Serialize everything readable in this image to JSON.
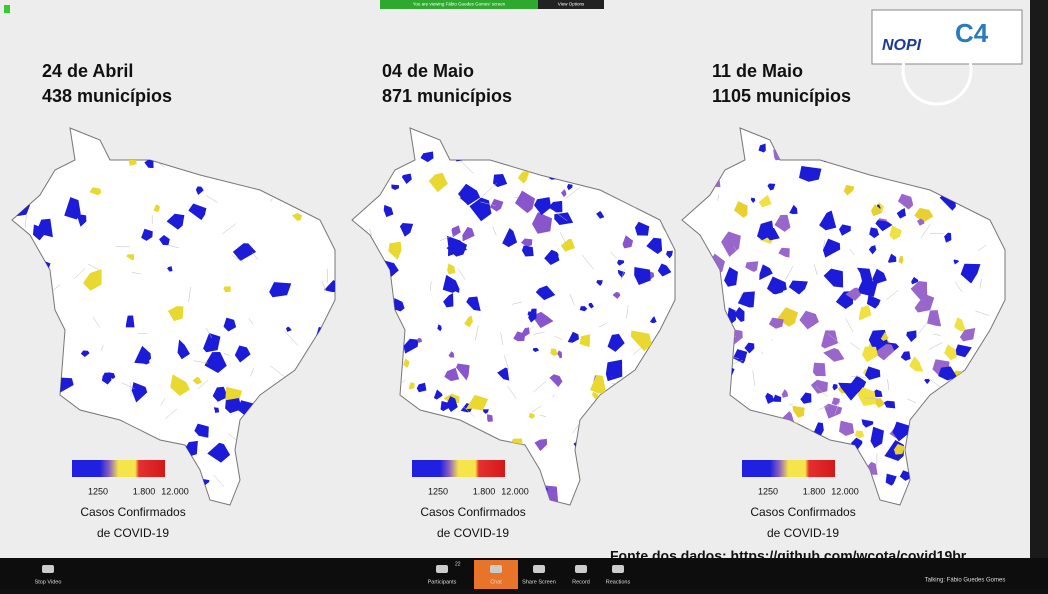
{
  "zoom_banner": {
    "viewing": "You are viewing Fábio Guedes Gomes' screen",
    "view_options": "View Options"
  },
  "logo": {
    "left": "NOPI",
    "right": "C4"
  },
  "slide": {
    "panels": [
      {
        "date": "24 de Abril",
        "count": "438 municípios",
        "legend": {
          "labels": [
            "12",
            "50",
            "1.800",
            "12.000"
          ],
          "title": [
            "Casos Confirmados",
            "de COVID-19"
          ]
        }
      },
      {
        "date": "04 de Maio",
        "count": "871 municípios",
        "legend": {
          "labels": [
            "12",
            "50",
            "1.800",
            "12.000"
          ],
          "title": [
            "Casos Confirmados",
            "de COVID-19"
          ]
        }
      },
      {
        "date": "11 de Maio",
        "count": "1105 municípios",
        "legend": {
          "labels": [
            "12",
            "50",
            "1.800",
            "12.000"
          ],
          "title": [
            "Casos Confirmados",
            "de COVID-19"
          ]
        }
      }
    ],
    "source": "Fonte dos dados: https://github.com/wcota/covid19br"
  },
  "toolbar": {
    "stop_video": "Stop Video",
    "participants": "Participants",
    "participants_count": "22",
    "chat": "Chat",
    "share_screen": "Share Screen",
    "record": "Record",
    "reactions": "Reactions"
  },
  "talking": "Talking: Fábio Guedes Gomes"
}
